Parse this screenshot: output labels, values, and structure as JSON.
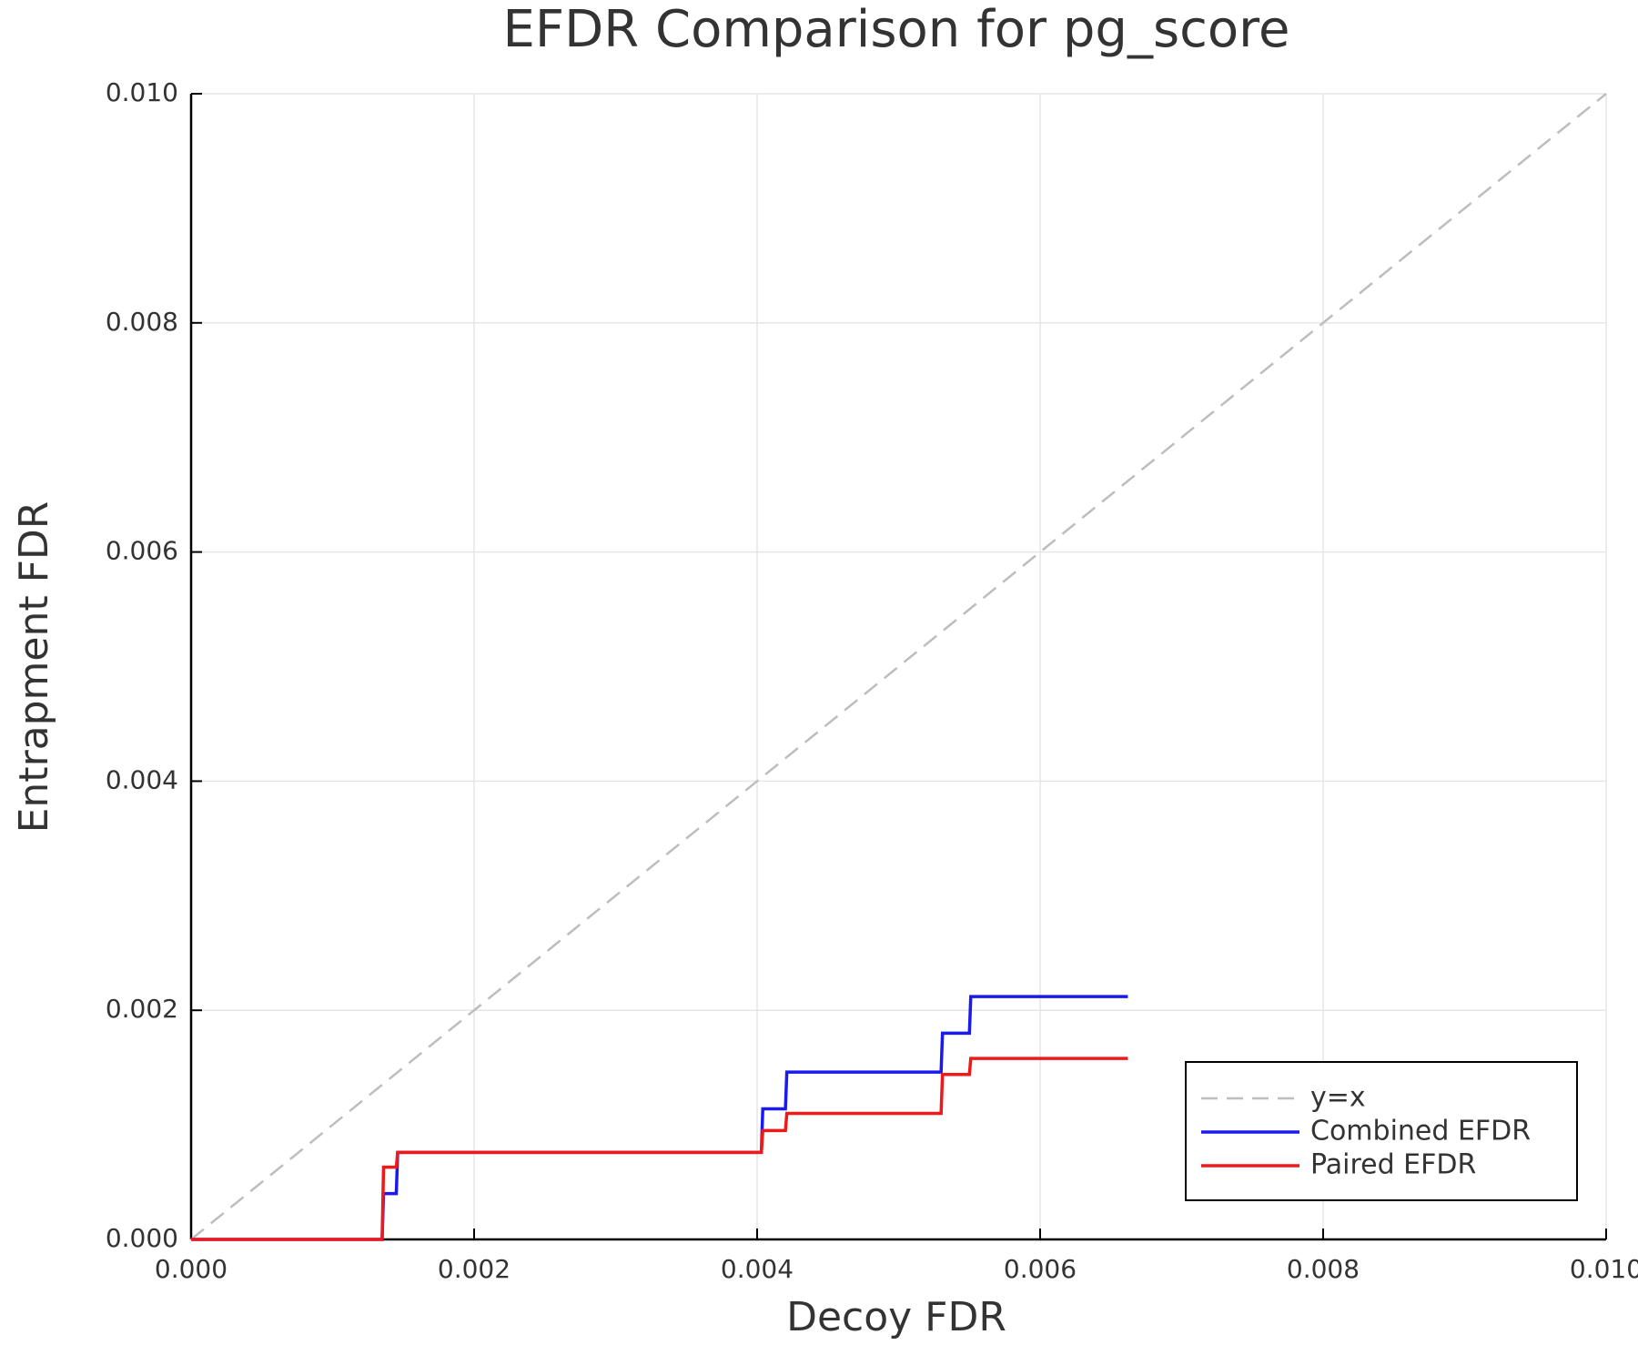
{
  "chart_data": {
    "type": "line",
    "title": "EFDR Comparison for pg_score",
    "x_label": "Decoy FDR",
    "y_label": "Entrapment FDR",
    "xlim": [
      0,
      0.01
    ],
    "ylim": [
      0,
      0.01
    ],
    "xticks": [
      {
        "value": 0,
        "label": "0.000"
      },
      {
        "value": 0.002,
        "label": "0.002"
      },
      {
        "value": 0.004,
        "label": "0.004"
      },
      {
        "value": 0.006,
        "label": "0.006"
      },
      {
        "value": 0.008,
        "label": "0.008"
      },
      {
        "value": 0.01,
        "label": "0.010"
      }
    ],
    "yticks": [
      {
        "value": 0,
        "label": "0.000"
      },
      {
        "value": 0.002,
        "label": "0.002"
      },
      {
        "value": 0.004,
        "label": "0.004"
      },
      {
        "value": 0.006,
        "label": "0.006"
      },
      {
        "value": 0.008,
        "label": "0.008"
      },
      {
        "value": 0.01,
        "label": "0.010"
      }
    ],
    "grid": true,
    "legend": "lower right",
    "series": [
      {
        "name": "y=x",
        "color": "#bdbdbd",
        "dashed": true,
        "x": [
          0,
          0.01
        ],
        "values": [
          0,
          0.01
        ]
      },
      {
        "name": "Combined EFDR",
        "color": "#1a1aee",
        "dashed": false,
        "x": [
          0,
          0.00135,
          0.00136,
          0.00145,
          0.00146,
          0.00403,
          0.00404,
          0.0042,
          0.00421,
          0.0053,
          0.00531,
          0.0055,
          0.00551,
          0.00662
        ],
        "values": [
          0,
          0,
          0.0004,
          0.0004,
          0.00076,
          0.00076,
          0.00114,
          0.00114,
          0.00146,
          0.00146,
          0.0018,
          0.0018,
          0.00212,
          0.00212
        ]
      },
      {
        "name": "Paired EFDR",
        "color": "#ee1a1a",
        "dashed": false,
        "x": [
          0,
          0.00135,
          0.00136,
          0.00145,
          0.00146,
          0.00403,
          0.00404,
          0.0042,
          0.00421,
          0.0053,
          0.00531,
          0.0055,
          0.00551,
          0.00662
        ],
        "values": [
          0,
          0,
          0.00063,
          0.00063,
          0.00076,
          0.00076,
          0.00095,
          0.00095,
          0.0011,
          0.0011,
          0.00144,
          0.00144,
          0.00158,
          0.00158
        ]
      }
    ]
  }
}
